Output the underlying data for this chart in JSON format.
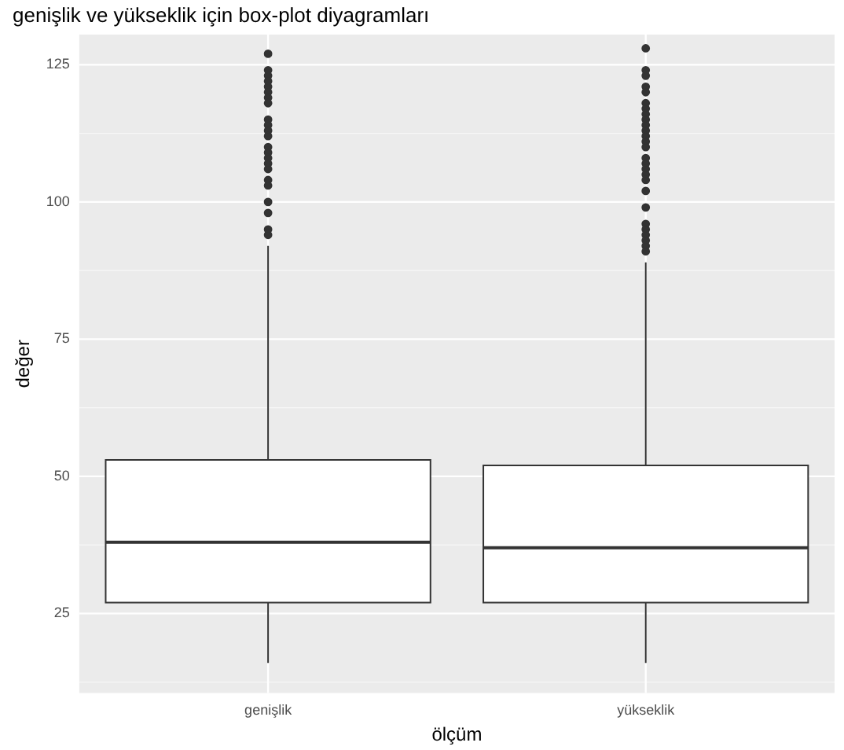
{
  "chart_data": {
    "type": "box",
    "title": "genişlik ve yükseklik için box-plot diyagramları",
    "xlabel": "ölçüm",
    "ylabel": "değer",
    "categories": [
      "genişlik",
      "yükseklik"
    ],
    "boxes": [
      {
        "low": 16,
        "q1": 27,
        "median": 38,
        "q3": 53,
        "high": 92,
        "outliers": [
          127,
          124,
          123,
          122,
          121,
          120,
          119,
          118,
          115,
          114,
          113,
          112,
          110,
          109,
          108,
          107,
          106,
          104,
          103,
          100,
          98,
          95,
          94
        ]
      },
      {
        "low": 16,
        "q1": 27,
        "median": 37,
        "q3": 52,
        "high": 89,
        "outliers": [
          128,
          124,
          123,
          121,
          120,
          118,
          117,
          116,
          115,
          114,
          113,
          112,
          111,
          110,
          108,
          107,
          106,
          105,
          104,
          102,
          99,
          96,
          95,
          94,
          93,
          92,
          91
        ]
      }
    ],
    "color": "#333333",
    "colors": [
      "#ffffff",
      "#ffffff"
    ],
    "ylim": [
      10.5,
      130.5
    ],
    "yticks": [
      25,
      50,
      75,
      100,
      125
    ],
    "grid": true,
    "legend": false
  }
}
